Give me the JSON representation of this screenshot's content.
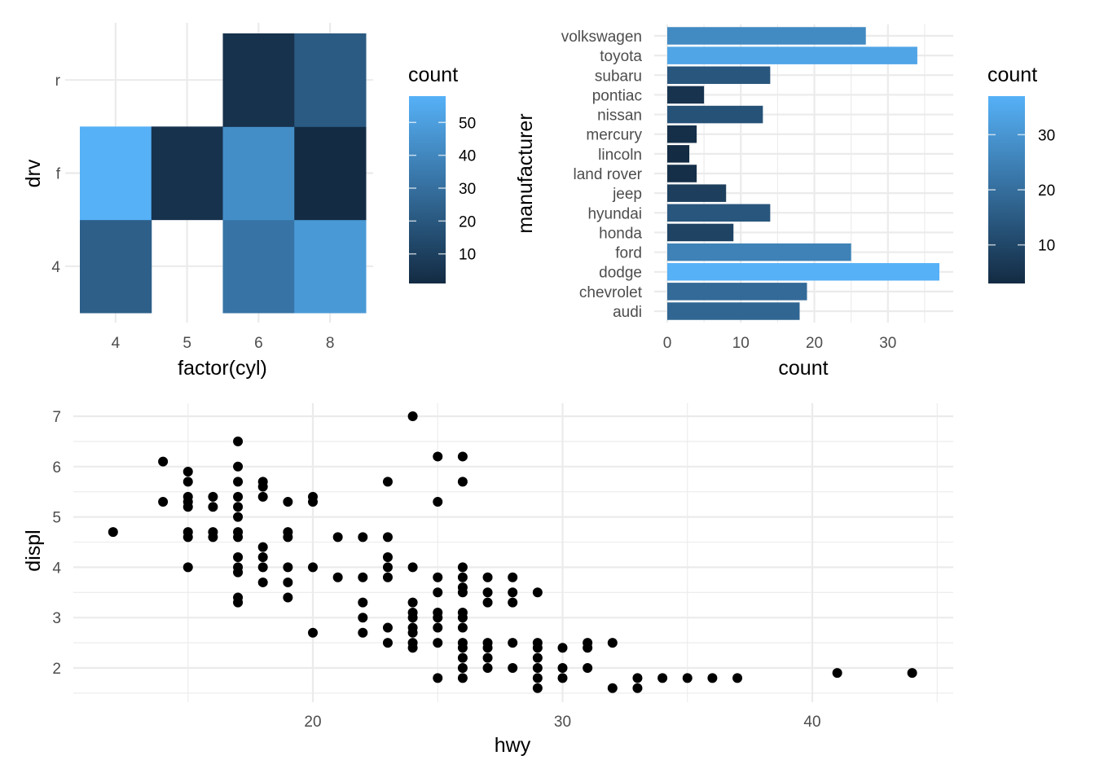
{
  "chart_data": [
    {
      "id": "heatmap",
      "type": "heatmap",
      "title": "",
      "xlabel": "factor(cyl)",
      "ylabel": "drv",
      "x_categories": [
        "4",
        "5",
        "6",
        "8"
      ],
      "y_categories": [
        "4",
        "f",
        "r"
      ],
      "cells": [
        {
          "x": "4",
          "y": "4",
          "count": 23
        },
        {
          "x": "6",
          "y": "4",
          "count": 32
        },
        {
          "x": "8",
          "y": "4",
          "count": 48
        },
        {
          "x": "4",
          "y": "f",
          "count": 58
        },
        {
          "x": "5",
          "y": "f",
          "count": 4
        },
        {
          "x": "6",
          "y": "f",
          "count": 43
        },
        {
          "x": "8",
          "y": "f",
          "count": 1
        },
        {
          "x": "6",
          "y": "r",
          "count": 4
        },
        {
          "x": "8",
          "y": "r",
          "count": 21
        }
      ],
      "legend": {
        "title": "count",
        "position": "right",
        "ticks": [
          10,
          20,
          30,
          40,
          50
        ],
        "range": [
          1,
          58
        ]
      },
      "color_low": "#132b43",
      "color_high": "#56b1f7",
      "grid": true
    },
    {
      "id": "bar",
      "type": "bar",
      "orientation": "horizontal",
      "title": "",
      "xlabel": "count",
      "ylabel": "manufacturer",
      "categories": [
        "audi",
        "chevrolet",
        "dodge",
        "ford",
        "honda",
        "hyundai",
        "jeep",
        "land rover",
        "lincoln",
        "mercury",
        "nissan",
        "pontiac",
        "subaru",
        "toyota",
        "volkswagen"
      ],
      "values": [
        18,
        19,
        37,
        25,
        9,
        14,
        8,
        4,
        3,
        4,
        13,
        5,
        14,
        34,
        27
      ],
      "xlim": [
        0,
        37
      ],
      "xticks": [
        0,
        10,
        20,
        30
      ],
      "legend": {
        "title": "count",
        "position": "right",
        "ticks": [
          10,
          20,
          30
        ],
        "range": [
          3,
          37
        ]
      },
      "color_low": "#132b43",
      "color_high": "#56b1f7",
      "grid": true
    },
    {
      "id": "scatter",
      "type": "scatter",
      "title": "",
      "xlabel": "hwy",
      "ylabel": "displ",
      "xlim": [
        12,
        44
      ],
      "ylim": [
        1.6,
        7
      ],
      "xticks": [
        20,
        30,
        40
      ],
      "yticks": [
        2,
        3,
        4,
        5,
        6,
        7
      ],
      "grid": true,
      "points": [
        [
          12,
          4.7
        ],
        [
          14,
          6.1
        ],
        [
          14,
          5.3
        ],
        [
          15,
          5.9
        ],
        [
          15,
          5.7
        ],
        [
          15,
          5.4
        ],
        [
          15,
          5.3
        ],
        [
          15,
          5.2
        ],
        [
          15,
          4.7
        ],
        [
          15,
          4.6
        ],
        [
          15,
          4.0
        ],
        [
          16,
          5.4
        ],
        [
          16,
          5.2
        ],
        [
          16,
          4.7
        ],
        [
          16,
          4.6
        ],
        [
          17,
          6.5
        ],
        [
          17,
          6.0
        ],
        [
          17,
          5.7
        ],
        [
          17,
          5.4
        ],
        [
          17,
          5.2
        ],
        [
          17,
          5.0
        ],
        [
          17,
          4.7
        ],
        [
          17,
          4.6
        ],
        [
          17,
          4.2
        ],
        [
          17,
          4.0
        ],
        [
          17,
          3.9
        ],
        [
          17,
          3.4
        ],
        [
          17,
          3.3
        ],
        [
          18,
          5.7
        ],
        [
          18,
          5.6
        ],
        [
          18,
          5.4
        ],
        [
          18,
          4.4
        ],
        [
          18,
          4.2
        ],
        [
          18,
          4.0
        ],
        [
          18,
          3.7
        ],
        [
          19,
          5.3
        ],
        [
          19,
          4.7
        ],
        [
          19,
          4.6
        ],
        [
          19,
          4.0
        ],
        [
          19,
          3.7
        ],
        [
          19,
          3.4
        ],
        [
          20,
          5.4
        ],
        [
          20,
          5.3
        ],
        [
          20,
          4.0
        ],
        [
          20,
          2.7
        ],
        [
          21,
          4.6
        ],
        [
          21,
          3.8
        ],
        [
          22,
          4.6
        ],
        [
          22,
          3.8
        ],
        [
          22,
          3.3
        ],
        [
          22,
          3.0
        ],
        [
          22,
          2.7
        ],
        [
          23,
          5.7
        ],
        [
          23,
          4.6
        ],
        [
          23,
          4.2
        ],
        [
          23,
          4.0
        ],
        [
          23,
          3.8
        ],
        [
          23,
          2.8
        ],
        [
          23,
          2.5
        ],
        [
          24,
          7.0
        ],
        [
          24,
          4.0
        ],
        [
          24,
          3.3
        ],
        [
          24,
          3.1
        ],
        [
          24,
          3.0
        ],
        [
          24,
          2.8
        ],
        [
          24,
          2.7
        ],
        [
          24,
          2.5
        ],
        [
          24,
          2.4
        ],
        [
          25,
          6.2
        ],
        [
          25,
          5.3
        ],
        [
          25,
          3.8
        ],
        [
          25,
          3.5
        ],
        [
          25,
          3.1
        ],
        [
          25,
          3.0
        ],
        [
          25,
          2.8
        ],
        [
          25,
          2.5
        ],
        [
          25,
          1.8
        ],
        [
          26,
          6.2
        ],
        [
          26,
          5.7
        ],
        [
          26,
          4.0
        ],
        [
          26,
          3.8
        ],
        [
          26,
          3.6
        ],
        [
          26,
          3.5
        ],
        [
          26,
          3.1
        ],
        [
          26,
          3.0
        ],
        [
          26,
          2.8
        ],
        [
          26,
          2.5
        ],
        [
          26,
          2.4
        ],
        [
          26,
          2.2
        ],
        [
          26,
          2.0
        ],
        [
          26,
          1.8
        ],
        [
          27,
          3.8
        ],
        [
          27,
          3.5
        ],
        [
          27,
          3.3
        ],
        [
          27,
          2.5
        ],
        [
          27,
          2.4
        ],
        [
          27,
          2.2
        ],
        [
          27,
          2.0
        ],
        [
          28,
          3.8
        ],
        [
          28,
          3.5
        ],
        [
          28,
          3.3
        ],
        [
          28,
          2.5
        ],
        [
          28,
          2.0
        ],
        [
          29,
          3.5
        ],
        [
          29,
          2.5
        ],
        [
          29,
          2.4
        ],
        [
          29,
          2.2
        ],
        [
          29,
          2.0
        ],
        [
          29,
          1.8
        ],
        [
          29,
          1.6
        ],
        [
          30,
          2.4
        ],
        [
          30,
          2.0
        ],
        [
          30,
          1.8
        ],
        [
          31,
          2.5
        ],
        [
          31,
          2.4
        ],
        [
          31,
          2.0
        ],
        [
          32,
          2.5
        ],
        [
          32,
          1.6
        ],
        [
          33,
          1.8
        ],
        [
          33,
          1.6
        ],
        [
          34,
          1.8
        ],
        [
          35,
          1.8
        ],
        [
          36,
          1.8
        ],
        [
          37,
          1.8
        ],
        [
          41,
          1.9
        ],
        [
          44,
          1.9
        ]
      ],
      "point_color": "#000000"
    }
  ]
}
